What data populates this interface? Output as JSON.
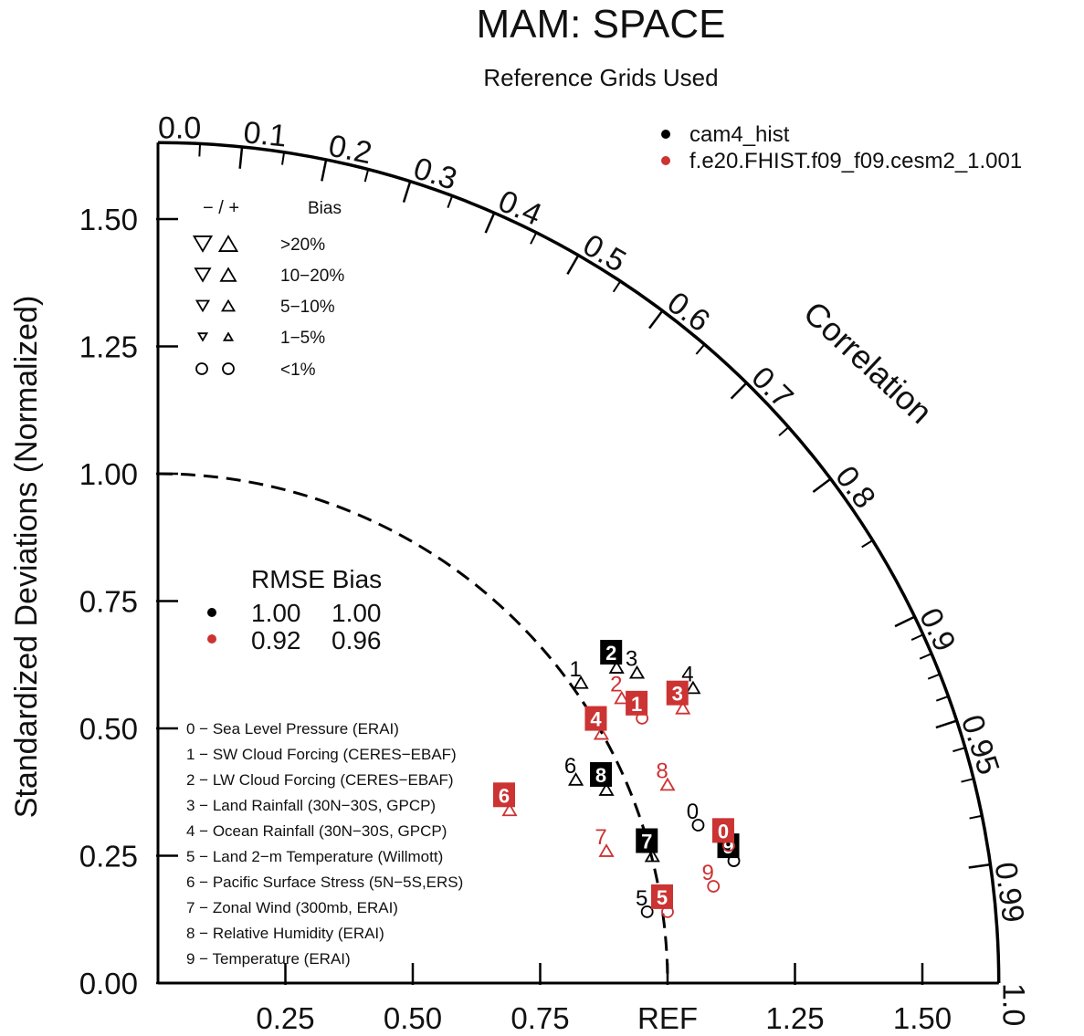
{
  "chart_data": {
    "type": "scatter",
    "subtype": "taylor-diagram",
    "title": "MAM: SPACE",
    "subtitle": "Reference Grids Used",
    "ylabel": "Standardized Deviations (Normalized)",
    "correlation_label": "Correlation",
    "x_tick_labels": [
      "0.25",
      "0.50",
      "0.75",
      "REF",
      "1.25",
      "1.50"
    ],
    "y_tick_labels": [
      "0.00",
      "0.25",
      "0.50",
      "0.75",
      "1.00",
      "1.25",
      "1.50"
    ],
    "std_range": [
      0,
      1.65
    ],
    "correlation_ticks": [
      {
        "value": 0.0,
        "label": "0.0"
      },
      {
        "value": 0.1,
        "label": "0.1"
      },
      {
        "value": 0.2,
        "label": "0.2"
      },
      {
        "value": 0.3,
        "label": "0.3"
      },
      {
        "value": 0.4,
        "label": "0.4"
      },
      {
        "value": 0.5,
        "label": "0.5"
      },
      {
        "value": 0.6,
        "label": "0.6"
      },
      {
        "value": 0.7,
        "label": "0.7"
      },
      {
        "value": 0.8,
        "label": "0.8"
      },
      {
        "value": 0.9,
        "label": "0.9"
      },
      {
        "value": 0.95,
        "label": "0.95"
      },
      {
        "value": 0.99,
        "label": "0.99"
      },
      {
        "value": 1.0,
        "label": "1.0"
      }
    ],
    "legend_placement": "top-right",
    "series": [
      {
        "name": "cam4_hist",
        "color": "#000000",
        "rmse": "1.00",
        "bias": "1.00",
        "points": [
          {
            "id": "0",
            "x": 1.06,
            "y": 0.31,
            "marker": "circle"
          },
          {
            "id": "1",
            "x": 0.83,
            "y": 0.59,
            "marker": "triangle-up"
          },
          {
            "id": "2",
            "x": 0.9,
            "y": 0.62,
            "marker": "triangle-up",
            "boxed": true
          },
          {
            "id": "3",
            "x": 0.94,
            "y": 0.61,
            "marker": "triangle-up"
          },
          {
            "id": "4",
            "x": 1.05,
            "y": 0.58,
            "marker": "triangle-up"
          },
          {
            "id": "5",
            "x": 0.96,
            "y": 0.14,
            "marker": "circle"
          },
          {
            "id": "6",
            "x": 0.82,
            "y": 0.4,
            "marker": "triangle-up"
          },
          {
            "id": "7",
            "x": 0.97,
            "y": 0.25,
            "marker": "triangle-up",
            "boxed": true
          },
          {
            "id": "8",
            "x": 0.88,
            "y": 0.38,
            "marker": "triangle-up",
            "boxed": true
          },
          {
            "id": "9",
            "x": 1.13,
            "y": 0.24,
            "marker": "circle",
            "boxed": true
          }
        ]
      },
      {
        "name": "f.e20.FHIST.f09_f09.cesm2_1.001",
        "color": "#cc3333",
        "rmse": "0.92",
        "bias": "0.96",
        "points": [
          {
            "id": "0",
            "x": 1.12,
            "y": 0.27,
            "marker": "circle",
            "boxed": true
          },
          {
            "id": "1",
            "x": 0.95,
            "y": 0.52,
            "marker": "circle",
            "boxed": true
          },
          {
            "id": "2",
            "x": 0.91,
            "y": 0.56,
            "marker": "triangle-up"
          },
          {
            "id": "3",
            "x": 1.03,
            "y": 0.54,
            "marker": "triangle-up",
            "boxed": true
          },
          {
            "id": "4",
            "x": 0.87,
            "y": 0.49,
            "marker": "triangle-up",
            "boxed": true
          },
          {
            "id": "5",
            "x": 1.0,
            "y": 0.14,
            "marker": "circle",
            "boxed": true
          },
          {
            "id": "6",
            "x": 0.69,
            "y": 0.34,
            "marker": "triangle-up",
            "boxed": true
          },
          {
            "id": "7",
            "x": 0.88,
            "y": 0.26,
            "marker": "triangle-up"
          },
          {
            "id": "8",
            "x": 1.0,
            "y": 0.39,
            "marker": "triangle-up"
          },
          {
            "id": "9",
            "x": 1.09,
            "y": 0.19,
            "marker": "circle"
          }
        ]
      }
    ]
  },
  "legend": {
    "series_entries": [
      {
        "label": "cam4_hist",
        "color": "#000000"
      },
      {
        "label": "f.e20.FHIST.f09_f09.cesm2_1.001",
        "color": "#cc3333"
      }
    ],
    "bias_header_sign": "− / +",
    "bias_header_label": "Bias",
    "bias_ranges": [
      {
        "label": ">20%",
        "marker": "triangle",
        "size": 19
      },
      {
        "label": "10−20%",
        "marker": "triangle",
        "size": 16
      },
      {
        "label": "5−10%",
        "marker": "triangle",
        "size": 13
      },
      {
        "label": "1−5%",
        "marker": "triangle",
        "size": 9
      },
      {
        "label": "<1%",
        "marker": "circle",
        "size": 12
      }
    ],
    "rmse_header": "RMSE Bias",
    "rmse_rows": [
      {
        "color": "#000000",
        "rmse": "1.00",
        "bias": "1.00"
      },
      {
        "color": "#cc3333",
        "rmse": "0.92",
        "bias": "0.96"
      }
    ]
  },
  "variables": [
    "0 − Sea Level Pressure (ERAI)",
    "1 − SW Cloud Forcing (CERES−EBAF)",
    "2 − LW Cloud Forcing (CERES−EBAF)",
    "3 − Land Rainfall (30N−30S, GPCP)",
    "4 − Ocean Rainfall (30N−30S, GPCP)",
    "5 − Land 2−m Temperature (Willmott)",
    "6 − Pacific Surface Stress (5N−5S,ERS)",
    "7 − Zonal Wind (300mb, ERAI)",
    "8 − Relative Humidity (ERAI)",
    "9 − Temperature (ERAI)"
  ]
}
